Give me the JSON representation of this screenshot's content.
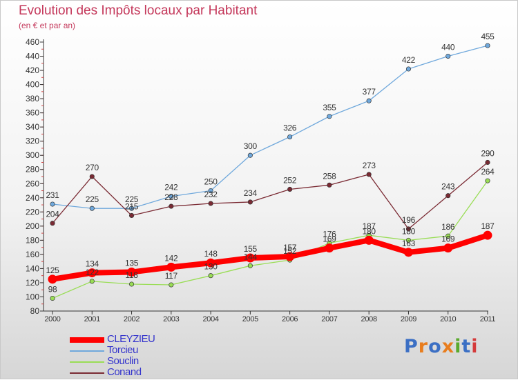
{
  "chart_data": {
    "type": "line",
    "title": "Evolution des Impôts locaux par Habitant",
    "subtitle": "(en € et par an)",
    "x": [
      "2000",
      "2001",
      "2002",
      "2003",
      "2004",
      "2005",
      "2006",
      "2007",
      "2008",
      "2009",
      "2010",
      "2011"
    ],
    "ylim": [
      80,
      460
    ],
    "ytick_step": 20,
    "grid": false,
    "legend_position": "bottom-left",
    "series": [
      {
        "name": "CLEYZIEU",
        "color": "#ff0000",
        "values": [
          125,
          134,
          135,
          142,
          148,
          155,
          157,
          169,
          180,
          163,
          169,
          187
        ]
      },
      {
        "name": "Torcieu",
        "color": "#6fa8dc",
        "values": [
          231,
          225,
          225,
          242,
          250,
          300,
          326,
          355,
          377,
          422,
          440,
          455
        ]
      },
      {
        "name": "Souclin",
        "color": "#99dd55",
        "values": [
          98,
          122,
          118,
          117,
          130,
          144,
          152,
          176,
          187,
          180,
          186,
          264
        ]
      },
      {
        "name": "Conand",
        "color": "#7a2a33",
        "values": [
          204,
          270,
          215,
          228,
          232,
          234,
          252,
          258,
          273,
          196,
          243,
          290
        ]
      }
    ]
  },
  "logo": {
    "text": "Proxiti",
    "colors": [
      "#3b6fc4",
      "#e87d1e",
      "#3b6fc4",
      "#e87d1e",
      "#5aaa2e",
      "#3b6fc4",
      "#d43a3a"
    ]
  }
}
